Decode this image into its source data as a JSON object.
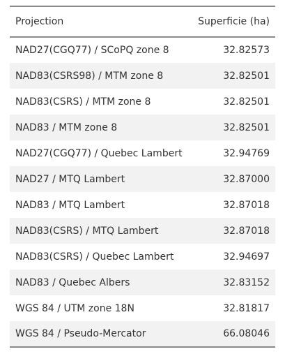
{
  "table": {
    "headers": [
      "Projection",
      "Superficie (ha)"
    ],
    "rows": [
      [
        "NAD27(CGQ77) / SCoPQ zone 8",
        "32.82573"
      ],
      [
        "NAD83(CSRS98) / MTM zone 8",
        "32.82501"
      ],
      [
        "NAD83(CSRS) / MTM zone 8",
        "32.82501"
      ],
      [
        "NAD83 / MTM zone 8",
        "32.82501"
      ],
      [
        "NAD27(CGQ77) / Quebec Lambert",
        "32.94769"
      ],
      [
        "NAD27 / MTQ Lambert",
        "32.87000"
      ],
      [
        "NAD83 / MTQ Lambert",
        "32.87018"
      ],
      [
        "NAD83(CSRS) / MTQ Lambert",
        "32.87018"
      ],
      [
        "NAD83(CSRS) / Quebec Lambert",
        "32.94697"
      ],
      [
        "NAD83 / Quebec Albers",
        "32.83152"
      ],
      [
        "WGS 84 / UTM zone 18N",
        "32.81817"
      ],
      [
        "WGS 84 / Pseudo-Mercator",
        "66.08046"
      ]
    ]
  }
}
